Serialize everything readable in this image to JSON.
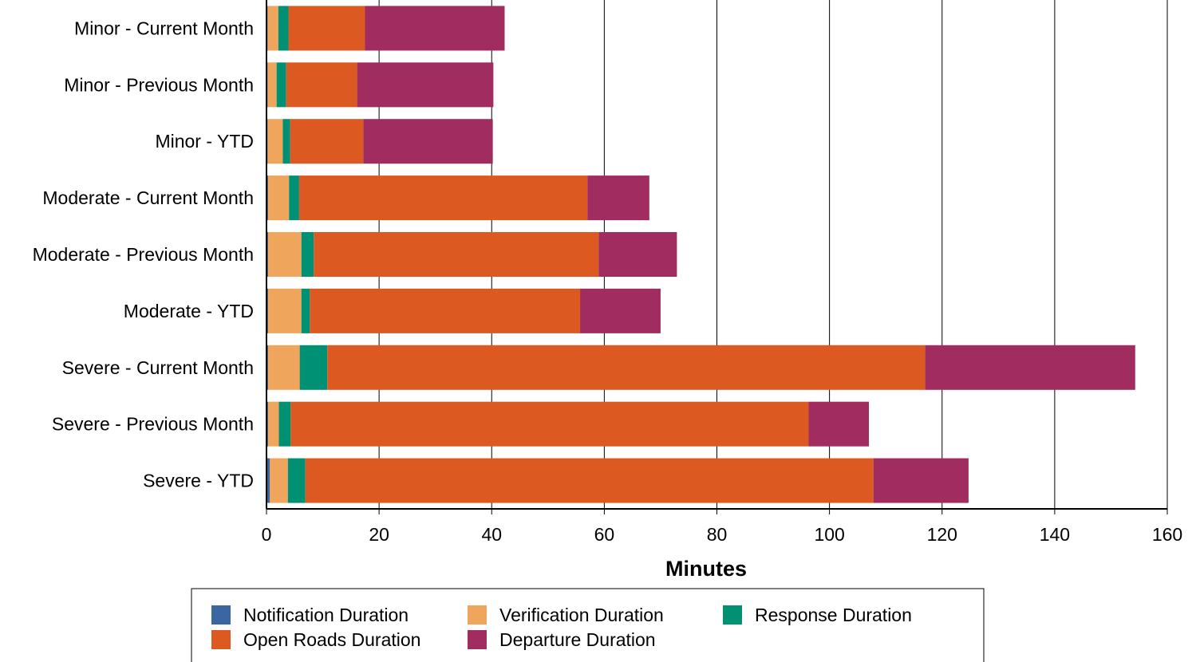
{
  "chart_data": {
    "type": "bar",
    "orientation": "horizontal",
    "stacked": true,
    "xlabel": "Minutes",
    "xlim": [
      0,
      160
    ],
    "xticks": [
      0,
      20,
      40,
      60,
      80,
      100,
      120,
      140,
      160
    ],
    "grid": "vertical",
    "legend_position": "bottom",
    "categories": [
      "Minor - Current Month",
      "Minor - Previous Month",
      "Minor - YTD",
      "Moderate - Current Month",
      "Moderate - Previous Month",
      "Moderate - YTD",
      "Severe - Current Month",
      "Severe - Previous Month",
      "Severe - YTD"
    ],
    "series": [
      {
        "name": "Notification Duration",
        "color": "#3a67a0",
        "values": [
          0.2,
          0.2,
          0.2,
          0.3,
          0.3,
          0.3,
          0.3,
          0.3,
          0.6
        ]
      },
      {
        "name": "Verification Duration",
        "color": "#f0a55c",
        "values": [
          1.9,
          1.6,
          2.7,
          3.7,
          5.9,
          5.9,
          5.6,
          1.9,
          3.2
        ]
      },
      {
        "name": "Response Duration",
        "color": "#009074",
        "values": [
          1.8,
          1.7,
          1.3,
          1.8,
          2.2,
          1.5,
          4.9,
          2.1,
          3.1
        ]
      },
      {
        "name": "Open Roads Duration",
        "color": "#dc5a22",
        "values": [
          13.6,
          12.6,
          13.0,
          51.2,
          50.6,
          48.0,
          106.2,
          92.0,
          100.9
        ]
      },
      {
        "name": "Departure Duration",
        "color": "#a12c60",
        "values": [
          24.8,
          24.2,
          23.0,
          11.0,
          13.9,
          14.3,
          37.3,
          10.7,
          16.9
        ]
      }
    ]
  }
}
